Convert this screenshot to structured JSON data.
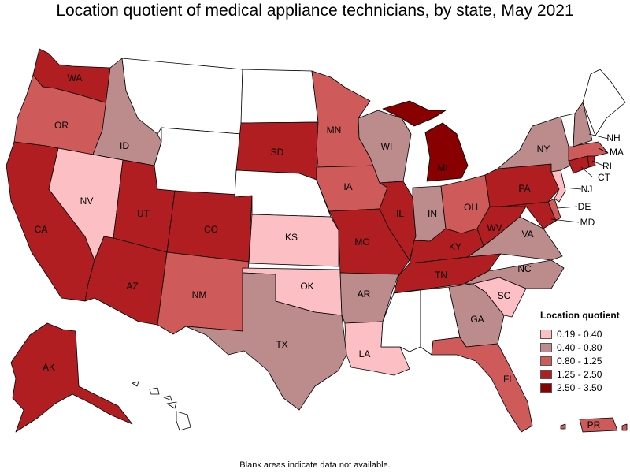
{
  "title": "Location quotient of medical appliance technicians, by state, May 2021",
  "footnote": "Blank areas indicate data not available.",
  "legend": {
    "title": "Location quotient",
    "placement": "right",
    "bins": [
      {
        "label": "0.19 - 0.40",
        "color": "#fbbfc4"
      },
      {
        "label": "0.40 - 0.80",
        "color": "#bc8b8b"
      },
      {
        "label": "0.80 - 1.25",
        "color": "#cf5a5a"
      },
      {
        "label": "1.25 - 2.50",
        "color": "#b01e22"
      },
      {
        "label": "2.50 - 3.50",
        "color": "#880000"
      }
    ]
  },
  "no_data_color": "#ffffff",
  "states": [
    {
      "abbr": "WA",
      "bin": 3
    },
    {
      "abbr": "OR",
      "bin": 2
    },
    {
      "abbr": "CA",
      "bin": 3
    },
    {
      "abbr": "ID",
      "bin": 1
    },
    {
      "abbr": "NV",
      "bin": 0
    },
    {
      "abbr": "UT",
      "bin": 3
    },
    {
      "abbr": "AZ",
      "bin": 3
    },
    {
      "abbr": "MT",
      "bin": null
    },
    {
      "abbr": "WY",
      "bin": null
    },
    {
      "abbr": "CO",
      "bin": 3
    },
    {
      "abbr": "NM",
      "bin": 2
    },
    {
      "abbr": "ND",
      "bin": null
    },
    {
      "abbr": "SD",
      "bin": 3
    },
    {
      "abbr": "NE",
      "bin": null
    },
    {
      "abbr": "KS",
      "bin": 0
    },
    {
      "abbr": "OK",
      "bin": 0
    },
    {
      "abbr": "TX",
      "bin": 1
    },
    {
      "abbr": "MN",
      "bin": 2
    },
    {
      "abbr": "IA",
      "bin": 2
    },
    {
      "abbr": "MO",
      "bin": 3
    },
    {
      "abbr": "AR",
      "bin": 1
    },
    {
      "abbr": "LA",
      "bin": 0
    },
    {
      "abbr": "WI",
      "bin": 1
    },
    {
      "abbr": "IL",
      "bin": 3
    },
    {
      "abbr": "MI",
      "bin": 4
    },
    {
      "abbr": "IN",
      "bin": 1
    },
    {
      "abbr": "OH",
      "bin": 2
    },
    {
      "abbr": "KY",
      "bin": 3
    },
    {
      "abbr": "TN",
      "bin": 3
    },
    {
      "abbr": "MS",
      "bin": null
    },
    {
      "abbr": "AL",
      "bin": null
    },
    {
      "abbr": "GA",
      "bin": 1
    },
    {
      "abbr": "FL",
      "bin": 2
    },
    {
      "abbr": "SC",
      "bin": 0
    },
    {
      "abbr": "NC",
      "bin": 1
    },
    {
      "abbr": "VA",
      "bin": 1
    },
    {
      "abbr": "WV",
      "bin": 3
    },
    {
      "abbr": "PA",
      "bin": 3
    },
    {
      "abbr": "NY",
      "bin": 1
    },
    {
      "abbr": "VT",
      "bin": null
    },
    {
      "abbr": "NH",
      "bin": 1
    },
    {
      "abbr": "ME",
      "bin": null
    },
    {
      "abbr": "MA",
      "bin": 2
    },
    {
      "abbr": "RI",
      "bin": 3
    },
    {
      "abbr": "CT",
      "bin": 3
    },
    {
      "abbr": "NJ",
      "bin": 0
    },
    {
      "abbr": "DE",
      "bin": 2
    },
    {
      "abbr": "MD",
      "bin": 3
    },
    {
      "abbr": "AK",
      "bin": 3
    },
    {
      "abbr": "HI",
      "bin": null
    },
    {
      "abbr": "PR",
      "bin": 2
    }
  ]
}
